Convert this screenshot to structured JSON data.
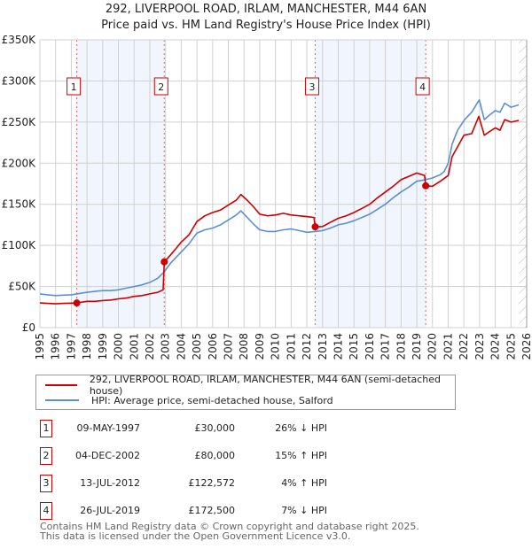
{
  "chart_data": {
    "type": "line",
    "title": "292, LIVERPOOL ROAD, IRLAM, MANCHESTER, M44 6AN",
    "subtitle": "Price paid vs. HM Land Registry's House Price Index (HPI)",
    "xlim": [
      1995,
      2026
    ],
    "ylim": [
      0,
      350000
    ],
    "y_ticks": [
      {
        "v": 0,
        "label": "£0"
      },
      {
        "v": 50000,
        "label": "£50K"
      },
      {
        "v": 100000,
        "label": "£100K"
      },
      {
        "v": 150000,
        "label": "£150K"
      },
      {
        "v": 200000,
        "label": "£200K"
      },
      {
        "v": 250000,
        "label": "£250K"
      },
      {
        "v": 300000,
        "label": "£300K"
      },
      {
        "v": 350000,
        "label": "£350K"
      }
    ],
    "x_ticks": [
      "1995",
      "1996",
      "1997",
      "1998",
      "1999",
      "2000",
      "2001",
      "2002",
      "2003",
      "2004",
      "2005",
      "2006",
      "2007",
      "2008",
      "2009",
      "2010",
      "2011",
      "2012",
      "2013",
      "2014",
      "2015",
      "2016",
      "2017",
      "2018",
      "2019",
      "2020",
      "2021",
      "2022",
      "2023",
      "2024",
      "2025",
      "2026"
    ],
    "grid": true,
    "forecast_hatch_from": 2025.5,
    "shaded_ranges": [
      [
        1997.35,
        2002.92
      ],
      [
        2012.53,
        2019.57
      ]
    ],
    "series": [
      {
        "name": "292, LIVERPOOL ROAD, IRLAM, MANCHESTER, M44 6AN (semi-detached house)",
        "color": "#cc0000",
        "points": [
          [
            1995,
            30000
          ],
          [
            1995.5,
            29500
          ],
          [
            1996,
            29000
          ],
          [
            1996.5,
            29500
          ],
          [
            1997,
            29800
          ],
          [
            1997.35,
            30000
          ],
          [
            1998,
            32000
          ],
          [
            1998.5,
            32000
          ],
          [
            1999,
            33000
          ],
          [
            1999.5,
            33500
          ],
          [
            2000,
            35000
          ],
          [
            2000.5,
            36000
          ],
          [
            2001,
            38000
          ],
          [
            2001.5,
            39000
          ],
          [
            2002,
            41000
          ],
          [
            2002.5,
            43000
          ],
          [
            2002.85,
            46000
          ],
          [
            2002.92,
            80000
          ],
          [
            2003.3,
            88000
          ],
          [
            2003.7,
            97000
          ],
          [
            2004,
            104000
          ],
          [
            2004.5,
            113000
          ],
          [
            2005,
            129000
          ],
          [
            2005.5,
            136000
          ],
          [
            2006,
            140000
          ],
          [
            2006.5,
            143000
          ],
          [
            2007,
            149000
          ],
          [
            2007.5,
            155000
          ],
          [
            2007.8,
            162000
          ],
          [
            2008.2,
            155000
          ],
          [
            2008.6,
            147000
          ],
          [
            2009,
            138000
          ],
          [
            2009.5,
            136000
          ],
          [
            2010,
            137000
          ],
          [
            2010.5,
            139000
          ],
          [
            2011,
            137000
          ],
          [
            2011.5,
            136000
          ],
          [
            2012,
            135000
          ],
          [
            2012.45,
            134000
          ],
          [
            2012.53,
            122572
          ],
          [
            2013,
            123000
          ],
          [
            2013.5,
            128000
          ],
          [
            2014,
            133000
          ],
          [
            2014.5,
            136000
          ],
          [
            2015,
            140000
          ],
          [
            2015.5,
            145000
          ],
          [
            2016,
            150000
          ],
          [
            2016.5,
            158000
          ],
          [
            2017,
            165000
          ],
          [
            2017.5,
            172000
          ],
          [
            2018,
            180000
          ],
          [
            2018.5,
            184000
          ],
          [
            2019,
            188000
          ],
          [
            2019.5,
            185000
          ],
          [
            2019.57,
            172500
          ],
          [
            2020,
            172000
          ],
          [
            2020.5,
            178000
          ],
          [
            2021,
            185000
          ],
          [
            2021.25,
            208000
          ],
          [
            2021.6,
            220000
          ],
          [
            2022,
            234000
          ],
          [
            2022.5,
            236000
          ],
          [
            2022.95,
            257000
          ],
          [
            2023.3,
            234000
          ],
          [
            2023.6,
            238000
          ],
          [
            2024,
            243000
          ],
          [
            2024.3,
            240000
          ],
          [
            2024.6,
            253000
          ],
          [
            2025,
            250000
          ],
          [
            2025.5,
            252000
          ]
        ]
      },
      {
        "name": "HPI: Average price, semi-detached house, Salford",
        "color": "#5b8fd6",
        "points": [
          [
            1995,
            41000
          ],
          [
            1995.5,
            40000
          ],
          [
            1996,
            39000
          ],
          [
            1996.5,
            39500
          ],
          [
            1997,
            40000
          ],
          [
            1997.35,
            41000
          ],
          [
            1998,
            43000
          ],
          [
            1998.5,
            44000
          ],
          [
            1999,
            45000
          ],
          [
            1999.5,
            45000
          ],
          [
            2000,
            46000
          ],
          [
            2000.5,
            48000
          ],
          [
            2001,
            50000
          ],
          [
            2001.5,
            52000
          ],
          [
            2002,
            55000
          ],
          [
            2002.5,
            60000
          ],
          [
            2002.92,
            68000
          ],
          [
            2003.3,
            78000
          ],
          [
            2003.7,
            86000
          ],
          [
            2004,
            92000
          ],
          [
            2004.5,
            102000
          ],
          [
            2005,
            115000
          ],
          [
            2005.5,
            119000
          ],
          [
            2006,
            121000
          ],
          [
            2006.5,
            125000
          ],
          [
            2007,
            131000
          ],
          [
            2007.5,
            137000
          ],
          [
            2007.8,
            142000
          ],
          [
            2008.2,
            134000
          ],
          [
            2008.6,
            126000
          ],
          [
            2009,
            119000
          ],
          [
            2009.5,
            117000
          ],
          [
            2010,
            117000
          ],
          [
            2010.5,
            119000
          ],
          [
            2011,
            120000
          ],
          [
            2011.5,
            118000
          ],
          [
            2012,
            116000
          ],
          [
            2012.53,
            117000
          ],
          [
            2013,
            118000
          ],
          [
            2013.5,
            121000
          ],
          [
            2014,
            125000
          ],
          [
            2014.5,
            127000
          ],
          [
            2015,
            130000
          ],
          [
            2015.5,
            134000
          ],
          [
            2016,
            138000
          ],
          [
            2016.5,
            144000
          ],
          [
            2017,
            150000
          ],
          [
            2017.5,
            158000
          ],
          [
            2018,
            165000
          ],
          [
            2018.5,
            171000
          ],
          [
            2019,
            178000
          ],
          [
            2019.57,
            180000
          ],
          [
            2020,
            182000
          ],
          [
            2020.5,
            186000
          ],
          [
            2020.75,
            190000
          ],
          [
            2021,
            200000
          ],
          [
            2021.25,
            223000
          ],
          [
            2021.6,
            240000
          ],
          [
            2022.05,
            253000
          ],
          [
            2022.5,
            262000
          ],
          [
            2022.98,
            277000
          ],
          [
            2023.3,
            253000
          ],
          [
            2023.6,
            258000
          ],
          [
            2024,
            264000
          ],
          [
            2024.3,
            262000
          ],
          [
            2024.6,
            273000
          ],
          [
            2025,
            268000
          ],
          [
            2025.5,
            271000
          ]
        ]
      }
    ],
    "sales": [
      {
        "marker": "1",
        "x": 1997.35,
        "value": 30000
      },
      {
        "marker": "2",
        "x": 2002.92,
        "value": 80000
      },
      {
        "marker": "3",
        "x": 2012.53,
        "value": 122572
      },
      {
        "marker": "4",
        "x": 2019.57,
        "value": 172500
      }
    ]
  },
  "legend": {
    "property": "292, LIVERPOOL ROAD, IRLAM, MANCHESTER, M44 6AN (semi-detached house)",
    "hpi": "HPI: Average price, semi-detached house, Salford"
  },
  "transactions": [
    {
      "num": "1",
      "date": "09-MAY-1997",
      "price": "£30,000",
      "rel": "26% ↓ HPI"
    },
    {
      "num": "2",
      "date": "04-DEC-2002",
      "price": "£80,000",
      "rel": "15% ↑ HPI"
    },
    {
      "num": "3",
      "date": "13-JUL-2012",
      "price": "£122,572",
      "rel": "4% ↑ HPI"
    },
    {
      "num": "4",
      "date": "26-JUL-2019",
      "price": "£172,500",
      "rel": "7% ↓ HPI"
    }
  ],
  "footer": {
    "line1": "Contains HM Land Registry data © Crown copyright and database right 2025.",
    "line2": "This data is licensed under the Open Government Licence v3.0."
  }
}
